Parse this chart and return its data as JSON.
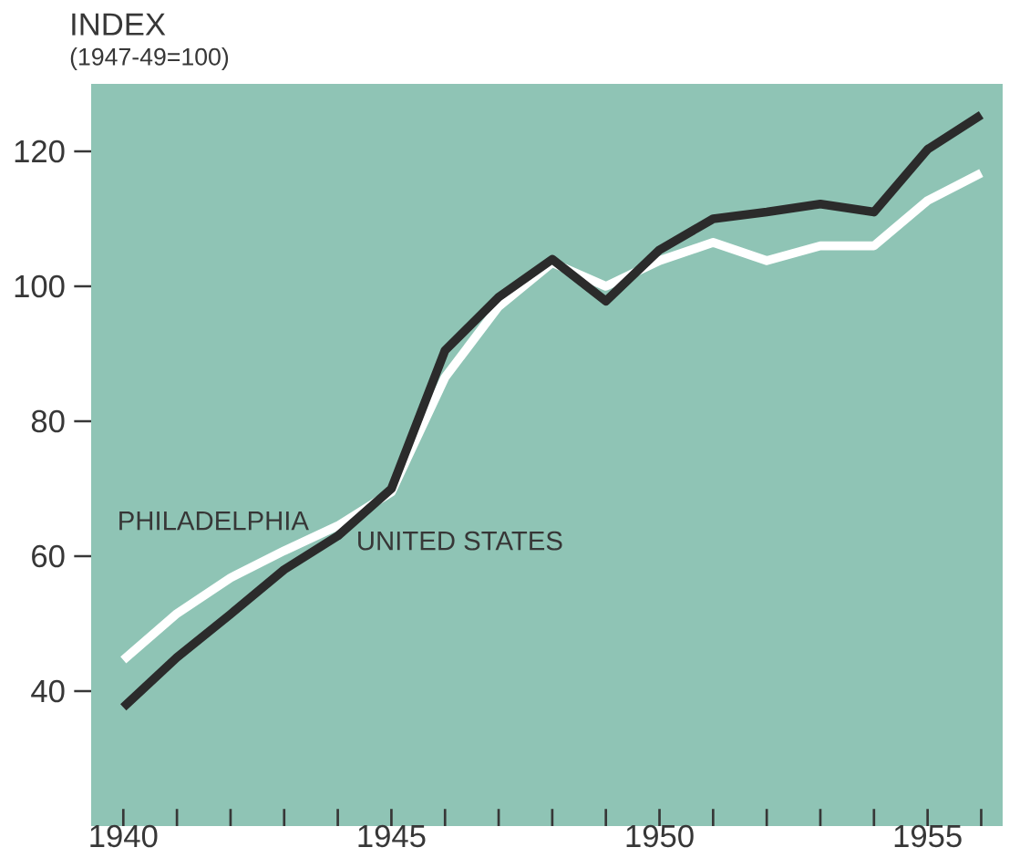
{
  "chart_data": {
    "type": "line",
    "title": "INDEX",
    "subtitle": "(1947-49=100)",
    "x": [
      1940,
      1941,
      1942,
      1943,
      1944,
      1945,
      1946,
      1947,
      1948,
      1949,
      1950,
      1951,
      1952,
      1953,
      1954,
      1955,
      1956
    ],
    "series": [
      {
        "name": "PHILADELPHIA",
        "color": "#ffffff",
        "values": [
          44.6,
          51.5,
          56.8,
          60.8,
          64.5,
          69.5,
          86.5,
          97,
          103.5,
          100,
          103.8,
          106.5,
          103.8,
          106,
          106,
          112.7,
          116.8
        ]
      },
      {
        "name": "UNITED STATES",
        "color": "#2b2b2b",
        "values": [
          37.6,
          45,
          51.4,
          58,
          63,
          70,
          90.5,
          98.4,
          104,
          97.8,
          105.4,
          110,
          111,
          112.2,
          111,
          120.3,
          125.4
        ]
      }
    ],
    "xlim": [
      1939.4,
      1956.4
    ],
    "ylim": [
      20,
      130
    ],
    "xticks": [
      {
        "value": 1940,
        "label": "1940"
      },
      {
        "value": 1941,
        "label": null
      },
      {
        "value": 1942,
        "label": null
      },
      {
        "value": 1943,
        "label": null
      },
      {
        "value": 1944,
        "label": null
      },
      {
        "value": 1945,
        "label": "1945"
      },
      {
        "value": 1946,
        "label": null
      },
      {
        "value": 1947,
        "label": null
      },
      {
        "value": 1948,
        "label": null
      },
      {
        "value": 1949,
        "label": null
      },
      {
        "value": 1950,
        "label": "1950"
      },
      {
        "value": 1951,
        "label": null
      },
      {
        "value": 1952,
        "label": null
      },
      {
        "value": 1953,
        "label": null
      },
      {
        "value": 1954,
        "label": null
      },
      {
        "value": 1955,
        "label": "1955"
      },
      {
        "value": 1956,
        "label": null
      }
    ],
    "yticks": [
      40,
      60,
      80,
      100,
      120
    ],
    "grid": false,
    "marker": "none",
    "line_style": "solid"
  }
}
